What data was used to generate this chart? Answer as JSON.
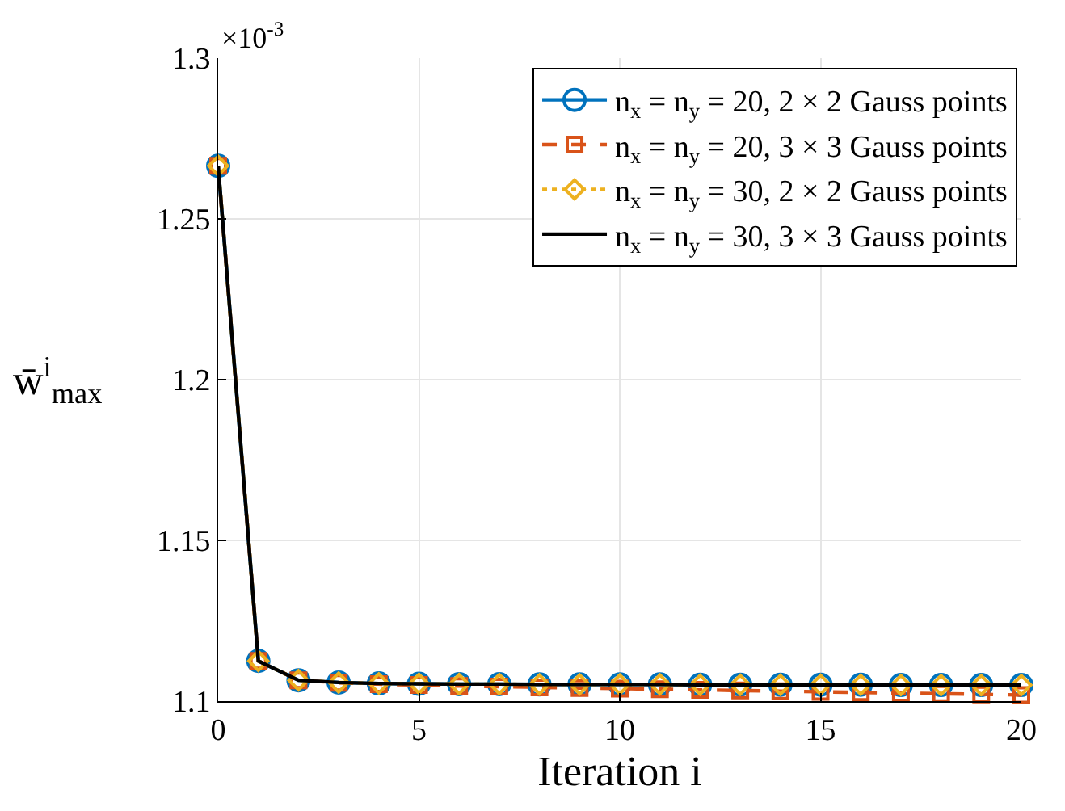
{
  "chart_data": {
    "type": "line",
    "xlabel": "Iteration i",
    "ylabel": "w̄$^{i}$$_{max}$",
    "x": [
      0,
      1,
      2,
      3,
      4,
      5,
      6,
      7,
      8,
      9,
      10,
      11,
      12,
      13,
      14,
      15,
      16,
      17,
      18,
      19,
      20
    ],
    "series": [
      {
        "name": "n$_{x}$ = n$_{y}$ = 20, 2 × 2 Gauss points",
        "color": "#0072bd",
        "marker": "circle",
        "line_style": "solid",
        "values": [
          1.2665,
          1.1125,
          1.1065,
          1.1058,
          1.1055,
          1.1054,
          1.1053,
          1.1053,
          1.1052,
          1.1052,
          1.1052,
          1.1052,
          1.1051,
          1.1051,
          1.1051,
          1.1051,
          1.1051,
          1.105,
          1.105,
          1.105,
          1.105
        ]
      },
      {
        "name": "n$_{x}$ = n$_{y}$ = 20, 3 × 3 Gauss points",
        "color": "#d95319",
        "marker": "square",
        "line_style": "dashed",
        "values": [
          1.2665,
          1.1125,
          1.1065,
          1.1057,
          1.1053,
          1.105,
          1.1047,
          1.1045,
          1.1043,
          1.1041,
          1.1039,
          1.1037,
          1.1035,
          1.1033,
          1.1031,
          1.1029,
          1.1027,
          1.1025,
          1.1023,
          1.1021,
          1.1019
        ]
      },
      {
        "name": "n$_{x}$ = n$_{y}$ = 30, 2 × 2 Gauss points",
        "color": "#edb120",
        "marker": "diamond",
        "line_style": "dotted",
        "values": [
          1.2665,
          1.1125,
          1.1065,
          1.1058,
          1.1055,
          1.1054,
          1.1053,
          1.1053,
          1.1052,
          1.1052,
          1.1052,
          1.1052,
          1.1051,
          1.1051,
          1.1051,
          1.1051,
          1.1051,
          1.105,
          1.105,
          1.105,
          1.105
        ]
      },
      {
        "name": "n$_{x}$ = n$_{y}$ = 30, 3 × 3 Gauss points",
        "color": "#000000",
        "marker": "none",
        "line_style": "solid",
        "values": [
          1.2665,
          1.1125,
          1.1065,
          1.1058,
          1.1055,
          1.1054,
          1.1053,
          1.1053,
          1.1052,
          1.1052,
          1.1052,
          1.1052,
          1.1051,
          1.1051,
          1.1051,
          1.1051,
          1.1051,
          1.105,
          1.105,
          1.105,
          1.105
        ]
      }
    ],
    "xlim": [
      0,
      20
    ],
    "xticks": [
      0,
      5,
      10,
      15,
      20
    ],
    "ylim": [
      1.1,
      1.3
    ],
    "yticks": [
      1.1,
      1.15,
      1.2,
      1.25,
      1.3
    ],
    "annotations": [
      "×10$^{-3}$"
    ],
    "grid": true,
    "legend": "top right"
  }
}
